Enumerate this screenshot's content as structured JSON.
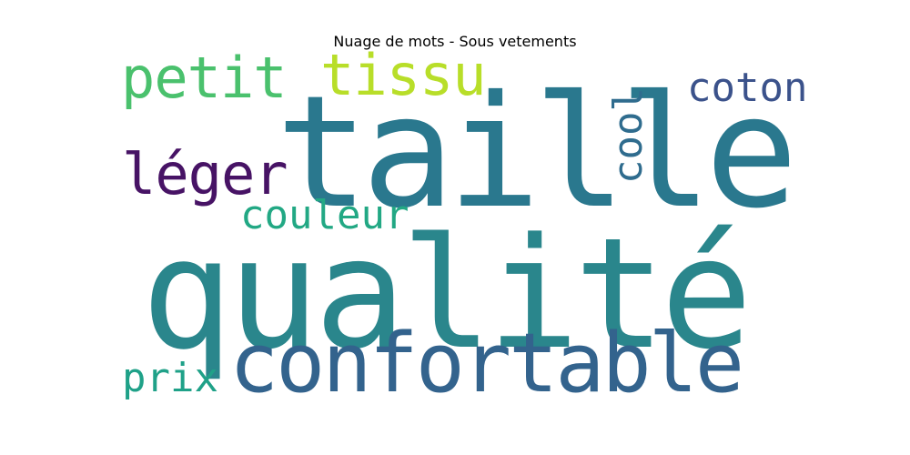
{
  "chart_data": {
    "type": "wordcloud",
    "title": "Nuage de mots - Sous vetements",
    "words": [
      {
        "text": "taille",
        "weight": 1.0,
        "color": "#2a788e",
        "orientation": "horizontal"
      },
      {
        "text": "qualité",
        "weight": 0.95,
        "color": "#2a868c",
        "orientation": "horizontal"
      },
      {
        "text": "confortable",
        "weight": 0.45,
        "color": "#33638d",
        "orientation": "horizontal"
      },
      {
        "text": "petit",
        "weight": 0.3,
        "color": "#4ac16d",
        "orientation": "horizontal"
      },
      {
        "text": "tissu",
        "weight": 0.3,
        "color": "#b8de29",
        "orientation": "horizontal"
      },
      {
        "text": "léger",
        "weight": 0.28,
        "color": "#471365",
        "orientation": "horizontal"
      },
      {
        "text": "coton",
        "weight": 0.2,
        "color": "#3b528b",
        "orientation": "horizontal"
      },
      {
        "text": "cool",
        "weight": 0.2,
        "color": "#2f6c8e",
        "orientation": "vertical"
      },
      {
        "text": "couleur",
        "weight": 0.2,
        "color": "#22a884",
        "orientation": "horizontal"
      },
      {
        "text": "prix",
        "weight": 0.2,
        "color": "#1fa188",
        "orientation": "horizontal"
      }
    ]
  }
}
